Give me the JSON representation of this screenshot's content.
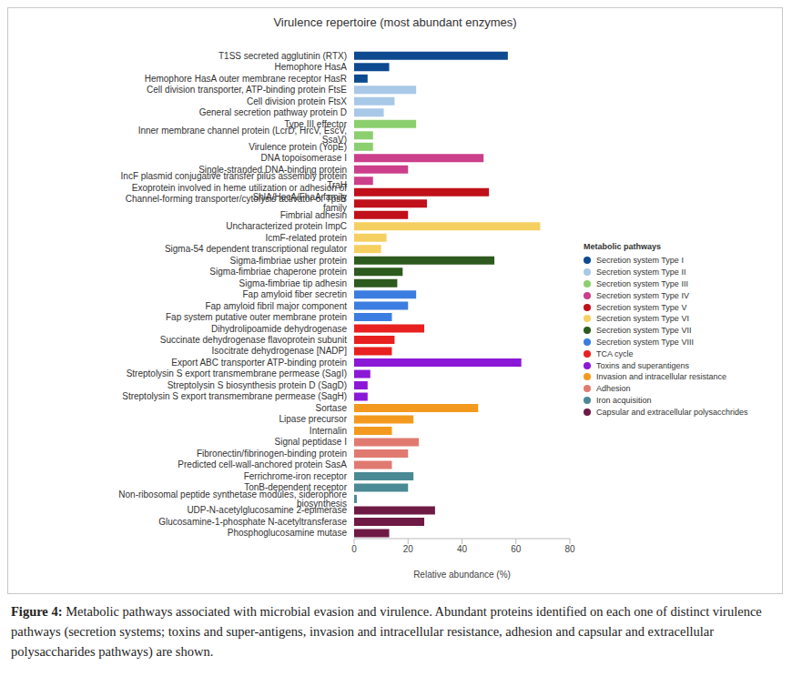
{
  "chart_data": {
    "type": "bar",
    "orientation": "horizontal",
    "title": "Virulence repertoire (most abundant enzymes)",
    "x_label": "Relative abundance (%)",
    "xlim": [
      0,
      80
    ],
    "xticks": [
      0,
      20,
      40,
      60,
      80
    ],
    "grid": false,
    "legend": "right",
    "legend_title": "Metabolic pathways",
    "caption_label": "Figure 4:",
    "caption": "Metabolic pathways associated with microbial evasion and virulence. Abundant proteins identified on each one of distinct virulence pathways (secretion systems; toxins and super-antigens, invasion and intracellular resistance, adhesion and capsular and extracellular polysaccharides pathways) are shown.",
    "series": [
      {
        "name": "Secretion system Type I",
        "color": "#0d4a8f",
        "categories": [
          "T1SS secreted agglutinin (RTX)",
          "Hemophore HasA",
          "Hemophore HasA outer membrane receptor HasR"
        ],
        "values": [
          57,
          13,
          5
        ]
      },
      {
        "name": "Secretion system Type II",
        "color": "#a8c8e8",
        "categories": [
          "Cell division transporter, ATP-binding protein FtsE",
          "Cell division protein FtsX",
          "General secretion pathway protein D"
        ],
        "values": [
          23,
          15,
          11
        ]
      },
      {
        "name": "Secretion system Type III",
        "color": "#8ccf6e",
        "categories": [
          "Type III effector",
          "Inner membrane channel protein (LcrD, HrcV, EscV, SsaV)",
          "Virulence protein (YopE)"
        ],
        "values": [
          23,
          7,
          7
        ]
      },
      {
        "name": "Secretion system Type IV",
        "color": "#cc3f8a",
        "categories": [
          "DNA topoisomerase I",
          "Single-stranded DNA-binding protein",
          "IncF plasmid conjugative transfer pilus assembly protein TraH"
        ],
        "values": [
          48,
          20,
          7
        ]
      },
      {
        "name": "Secretion system Type V",
        "color": "#c0101a",
        "categories": [
          "Exoprotein involved in heme utilization or adhesion of ShlA/HecA/FhaA family",
          "Channel-forming transporter/cytolysis activator of TpsB family",
          "Fimbrial adhesin"
        ],
        "values": [
          50,
          27,
          20
        ]
      },
      {
        "name": "Secretion system Type VI",
        "color": "#f5d060",
        "categories": [
          "Uncharacterized protein ImpC",
          "IcmF-related protein",
          "Sigma-54 dependent transcriptional regulator"
        ],
        "values": [
          69,
          12,
          10
        ]
      },
      {
        "name": "Secretion system Type VII",
        "color": "#2d5a1e",
        "categories": [
          "Sigma-fimbriae usher protein",
          "Sigma-fimbriae chaperone protein",
          "Sigma-fimbriae tip adhesin"
        ],
        "values": [
          52,
          18,
          16
        ]
      },
      {
        "name": "Secretion system Type VIII",
        "color": "#3b7de0",
        "categories": [
          "Fap amyloid fiber secretin",
          "Fap amyloid fibril major component",
          "Fap system putative outer membrane protein"
        ],
        "values": [
          23,
          20,
          14
        ]
      },
      {
        "name": "TCA cycle",
        "color": "#e82020",
        "categories": [
          "Dihydrolipoamide dehydrogenase",
          "Succinate dehydrogenase flavoprotein subunit",
          "Isocitrate dehydrogenase [NADP]"
        ],
        "values": [
          26,
          15,
          14
        ]
      },
      {
        "name": "Toxins and superantigens",
        "color": "#8b18d6",
        "categories": [
          "Export ABC transporter ATP-binding protein",
          "Streptolysin S export transmembrane permease (SagI)",
          "Streptolysin S biosynthesis protein D (SagD)",
          "Streptolysin S export transmembrane permease (SagH)"
        ],
        "values": [
          62,
          6,
          5,
          5
        ]
      },
      {
        "name": "Invasion and intracellular resistance",
        "color": "#f39a1e",
        "categories": [
          "Sortase",
          "Lipase precursor",
          "Internalin"
        ],
        "values": [
          46,
          22,
          14
        ]
      },
      {
        "name": "Adhesion",
        "color": "#e07a70",
        "categories": [
          "Signal peptidase I",
          "Fibronectin/fibrinogen-binding protein",
          "Predicted cell-wall-anchored protein SasA"
        ],
        "values": [
          24,
          20,
          14
        ]
      },
      {
        "name": "Iron acquisition",
        "color": "#4a8a94",
        "categories": [
          "Ferrichrome-iron receptor",
          "TonB-dependent receptor",
          "Non-ribosomal peptide synthetase modules, siderophore biosynthesis"
        ],
        "values": [
          22,
          20,
          1
        ]
      },
      {
        "name": "Capsular and extracellular polysacchrides",
        "color": "#6e1a45",
        "categories": [
          "UDP-N-acetylglucosamine 2-epimerase",
          "Glucosamine-1-phosphate N-acetyltransferase",
          "Phosphoglucosamine mutase"
        ],
        "values": [
          30,
          26,
          13
        ]
      }
    ]
  }
}
